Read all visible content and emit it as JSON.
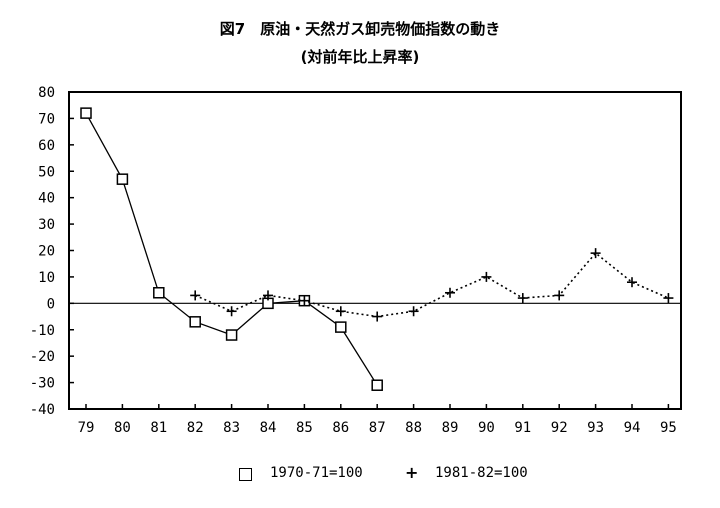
{
  "chart_data": {
    "type": "line",
    "title": "図7　原油・天然ガス卸売物価指数の動き",
    "subtitle": "(対前年比上昇率)",
    "xlabel": "",
    "ylabel": "",
    "categories": [
      "79",
      "80",
      "81",
      "82",
      "83",
      "84",
      "85",
      "86",
      "87",
      "88",
      "89",
      "90",
      "91",
      "92",
      "93",
      "94",
      "95"
    ],
    "ylim": [
      -40,
      80
    ],
    "yticks": [
      80,
      70,
      60,
      50,
      40,
      30,
      20,
      10,
      0,
      -10,
      -20,
      -30,
      -40
    ],
    "grid": false,
    "legend_position": "bottom",
    "series": [
      {
        "name": "1970-71=100",
        "marker": "square",
        "line_style": "solid",
        "x": [
          "79",
          "80",
          "81",
          "82",
          "83",
          "84",
          "85",
          "86",
          "87"
        ],
        "values": [
          72,
          47,
          4,
          -7,
          -12,
          0,
          1,
          -9,
          -31
        ]
      },
      {
        "name": "1981-82=100",
        "marker": "plus",
        "line_style": "dotted",
        "x": [
          "82",
          "83",
          "84",
          "85",
          "86",
          "87",
          "88",
          "89",
          "90",
          "91",
          "92",
          "93",
          "94",
          "95"
        ],
        "values": [
          3,
          -3,
          3,
          1,
          -3,
          -5,
          -3,
          4,
          10,
          2,
          3,
          19,
          8,
          2
        ]
      }
    ]
  }
}
